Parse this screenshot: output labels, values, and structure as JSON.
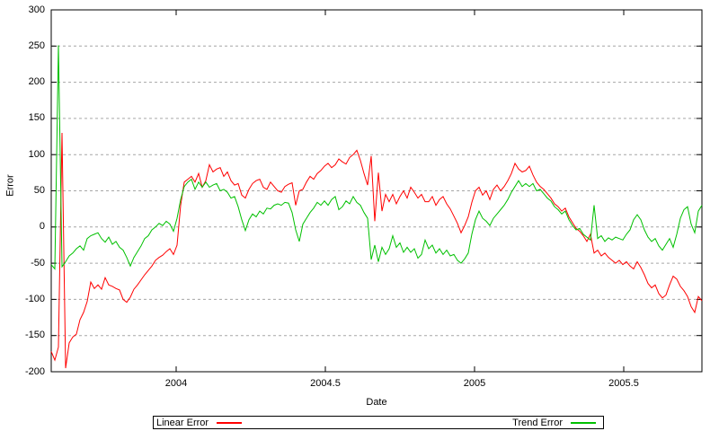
{
  "chart_data": {
    "type": "line",
    "title": "",
    "xlabel": "Date",
    "ylabel": "Error",
    "x_range": [
      2003.5813,
      2005.762
    ],
    "y_range": [
      -200,
      300
    ],
    "x_ticks": [
      2004,
      2004.5,
      2005,
      2005.5
    ],
    "x_tick_labels": [
      "2004",
      "2004.5",
      "2005",
      "2005.5"
    ],
    "y_ticks": [
      -200,
      -150,
      -100,
      -50,
      0,
      50,
      100,
      150,
      200,
      250,
      300
    ],
    "y_tick_labels": [
      "-200",
      "-150",
      "-100",
      "-50",
      "0",
      "50",
      "100",
      "150",
      "200",
      "250",
      "300"
    ],
    "grid": "horizontal-dashed",
    "legend_position": "below-box",
    "x_start": 2003.5813,
    "x_step": 0.0120482,
    "series": [
      {
        "name": "Linear Error",
        "color": "#ff0000",
        "values": [
          -172,
          -184,
          -166,
          130,
          -195,
          -160,
          -152,
          -148,
          -128,
          -118,
          -103,
          -76,
          -85,
          -80,
          -86,
          -70,
          -80,
          -82,
          -85,
          -87,
          -100,
          -104,
          -97,
          -86,
          -80,
          -73,
          -66,
          -60,
          -54,
          -46,
          -42,
          -39,
          -34,
          -30,
          -38,
          -25,
          30,
          62,
          66,
          70,
          62,
          74,
          55,
          64,
          86,
          76,
          80,
          82,
          70,
          76,
          64,
          58,
          60,
          44,
          40,
          52,
          60,
          64,
          66,
          55,
          52,
          62,
          56,
          50,
          48,
          56,
          59,
          61,
          30,
          50,
          52,
          62,
          70,
          66,
          74,
          78,
          84,
          88,
          82,
          86,
          94,
          90,
          87,
          96,
          100,
          106,
          92,
          74,
          58,
          98,
          8,
          75,
          22,
          45,
          35,
          45,
          32,
          42,
          50,
          40,
          55,
          48,
          40,
          45,
          35,
          35,
          42,
          30,
          38,
          42,
          32,
          25,
          15,
          5,
          -8,
          2,
          14,
          34,
          50,
          55,
          44,
          50,
          38,
          52,
          58,
          50,
          56,
          64,
          74,
          88,
          80,
          76,
          78,
          84,
          72,
          62,
          56,
          52,
          46,
          40,
          32,
          28,
          22,
          26,
          14,
          6,
          -2,
          -6,
          -12,
          -20,
          -10,
          -36,
          -32,
          -40,
          -36,
          -42,
          -46,
          -50,
          -46,
          -52,
          -48,
          -54,
          -58,
          -48,
          -56,
          -66,
          -78,
          -84,
          -80,
          -92,
          -98,
          -94,
          -80,
          -68,
          -72,
          -82,
          -88,
          -96,
          -110,
          -118,
          -96,
          -102
        ]
      },
      {
        "name": "Trend Error",
        "color": "#00c000",
        "values": [
          -52,
          -58,
          251,
          -55,
          -48,
          -40,
          -36,
          -30,
          -26,
          -32,
          -16,
          -12,
          -10,
          -8,
          -16,
          -21,
          -14,
          -24,
          -20,
          -28,
          -32,
          -42,
          -54,
          -42,
          -34,
          -26,
          -16,
          -12,
          -4,
          0,
          5,
          2,
          8,
          4,
          -6,
          12,
          38,
          56,
          62,
          66,
          52,
          62,
          55,
          62,
          55,
          58,
          60,
          50,
          52,
          48,
          40,
          42,
          28,
          10,
          -5,
          10,
          18,
          14,
          22,
          18,
          26,
          25,
          30,
          32,
          30,
          34,
          33,
          20,
          -4,
          -20,
          4,
          12,
          20,
          26,
          34,
          30,
          36,
          30,
          38,
          42,
          24,
          28,
          36,
          32,
          42,
          34,
          30,
          20,
          12,
          -45,
          -25,
          -48,
          -28,
          -38,
          -30,
          -12,
          -28,
          -22,
          -35,
          -28,
          -35,
          -30,
          -43,
          -38,
          -18,
          -30,
          -25,
          -36,
          -30,
          -38,
          -32,
          -40,
          -38,
          -46,
          -50,
          -44,
          -36,
          -10,
          10,
          22,
          12,
          8,
          2,
          12,
          18,
          24,
          30,
          38,
          48,
          56,
          64,
          56,
          60,
          56,
          60,
          50,
          52,
          46,
          40,
          36,
          28,
          24,
          18,
          22,
          10,
          2,
          -4,
          -2,
          -10,
          -14,
          -18,
          30,
          -16,
          -12,
          -20,
          -15,
          -18,
          -14,
          -16,
          -18,
          -10,
          -4,
          10,
          17,
          10,
          -4,
          -14,
          -20,
          -16,
          -26,
          -32,
          -24,
          -16,
          -28,
          -10,
          12,
          24,
          28,
          4,
          -8,
          22,
          30
        ]
      }
    ]
  },
  "colors": {
    "background": "#ffffff",
    "foreground": "#000000",
    "grid": "#a6a6a6",
    "border": "#000000"
  }
}
